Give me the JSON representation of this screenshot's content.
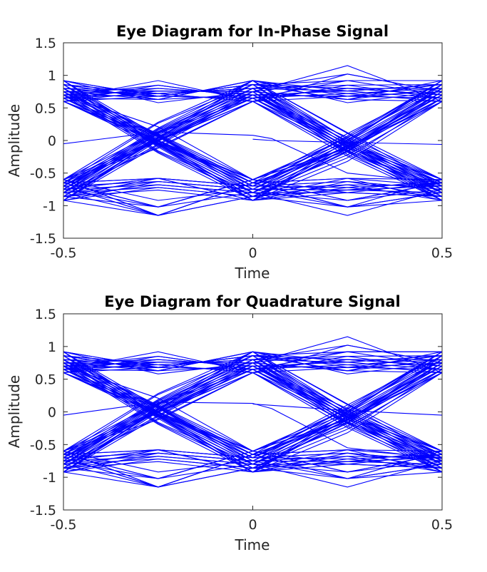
{
  "chart_data": [
    {
      "type": "line",
      "title": "Eye Diagram for In-Phase Signal",
      "xlabel": "Time",
      "ylabel": "Amplitude",
      "xlim": [
        -0.5,
        0.5
      ],
      "ylim": [
        -1.5,
        1.5
      ],
      "xticks": [
        -0.5,
        0,
        0.5
      ],
      "xtick_labels": [
        "-0.5",
        "0",
        "0.5"
      ],
      "yticks": [
        -1.5,
        -1,
        -0.5,
        0,
        0.5,
        1,
        1.5
      ],
      "ytick_labels": [
        "-1.5",
        "-1",
        "-0.5",
        "0",
        "0.5",
        "1",
        "1.5"
      ],
      "grid": false,
      "line_color": "#0000ff",
      "x": [
        -0.5,
        -0.25,
        0,
        0.25,
        0.5
      ],
      "levels_high": [
        0.58,
        0.63,
        0.68,
        0.72,
        0.76,
        0.8,
        0.85,
        0.92,
        1.02,
        1.15
      ],
      "levels_low": [
        -0.58,
        -0.63,
        -0.68,
        -0.72,
        -0.76,
        -0.8,
        -0.85,
        -0.92,
        -1.02,
        -1.15
      ],
      "sample_point_values": [
        0.92,
        0.86,
        0.8,
        0.75,
        0.7,
        0.65,
        0.6,
        -0.6,
        -0.65,
        -0.7,
        -0.75,
        -0.8,
        -0.86,
        -0.92
      ],
      "stray_traces": [
        {
          "x": [
            -0.5,
            -0.25,
            0
          ],
          "y": [
            -0.05,
            0.13,
            0.08
          ]
        },
        {
          "x": [
            0,
            0.05,
            0.25,
            0.5
          ],
          "y": [
            0.02,
            0.0,
            -0.03,
            -0.06
          ]
        },
        {
          "x": [
            0,
            0.05,
            0.25,
            0.5
          ],
          "y": [
            0.08,
            0.03,
            -0.5,
            -0.65
          ]
        }
      ]
    },
    {
      "type": "line",
      "title": "Eye Diagram for Quadrature Signal",
      "xlabel": "Time",
      "ylabel": "Amplitude",
      "xlim": [
        -0.5,
        0.5
      ],
      "ylim": [
        -1.5,
        1.5
      ],
      "xticks": [
        -0.5,
        0,
        0.5
      ],
      "xtick_labels": [
        "-0.5",
        "0",
        "0.5"
      ],
      "yticks": [
        -1.5,
        -1,
        -0.5,
        0,
        0.5,
        1,
        1.5
      ],
      "ytick_labels": [
        "-1.5",
        "-1",
        "-0.5",
        "0",
        "0.5",
        "1",
        "1.5"
      ],
      "grid": false,
      "line_color": "#0000ff",
      "x": [
        -0.5,
        -0.25,
        0,
        0.25,
        0.5
      ],
      "levels_high": [
        0.58,
        0.63,
        0.68,
        0.72,
        0.76,
        0.8,
        0.85,
        0.92,
        1.02,
        1.15
      ],
      "levels_low": [
        -0.58,
        -0.63,
        -0.68,
        -0.72,
        -0.76,
        -0.8,
        -0.85,
        -0.92,
        -1.02,
        -1.15
      ],
      "sample_point_values": [
        0.92,
        0.86,
        0.8,
        0.75,
        0.7,
        0.65,
        0.6,
        -0.6,
        -0.65,
        -0.7,
        -0.75,
        -0.8,
        -0.86,
        -0.92
      ],
      "stray_traces": [
        {
          "x": [
            -0.5,
            -0.25,
            0
          ],
          "y": [
            -0.05,
            0.15,
            0.13
          ]
        },
        {
          "x": [
            0,
            0.05,
            0.25,
            0.5
          ],
          "y": [
            0.13,
            0.05,
            -0.55,
            -0.72
          ]
        },
        {
          "x": [
            0,
            0.05,
            0.25,
            0.5
          ],
          "y": [
            0.12,
            0.1,
            0.02,
            -0.05
          ]
        }
      ]
    }
  ]
}
